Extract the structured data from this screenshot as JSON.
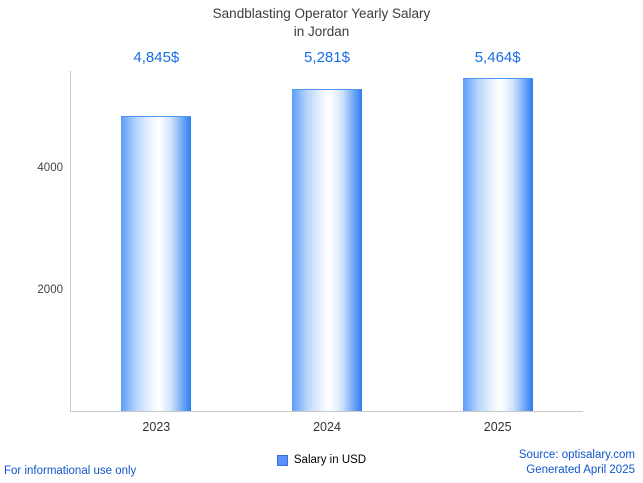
{
  "title": {
    "line1": "Sandblasting Operator Yearly Salary",
    "line2": "in Jordan"
  },
  "chart_data": {
    "type": "bar",
    "title": "Sandblasting Operator Yearly Salary in Jordan",
    "categories": [
      "2023",
      "2024",
      "2025"
    ],
    "values": [
      4845,
      5281,
      5464
    ],
    "value_labels": [
      "4,845$",
      "5,281$",
      "5,464$"
    ],
    "series": [
      {
        "name": "Salary in USD",
        "values": [
          4845,
          5281,
          5464
        ]
      }
    ],
    "xlabel": "",
    "ylabel": "",
    "ylim": [
      0,
      5600
    ],
    "yticks": [
      2000,
      4000
    ],
    "grid": false,
    "legend_position": "bottom",
    "bar_gradient": [
      "#5c9df8",
      "#ffffff",
      "#2e7cf0"
    ]
  },
  "legend": {
    "label": "Salary in USD",
    "swatch_color": "#5b8ff9"
  },
  "footer": {
    "left": "For informational use only",
    "source": "Source: optisalary.com",
    "generated": "Generated April 2025"
  },
  "colors": {
    "value_label_blue": "#1a6fe0",
    "link_blue": "#1155cc",
    "axis_gray": "#c8c8c8",
    "title_text": "#3c3c3c"
  }
}
